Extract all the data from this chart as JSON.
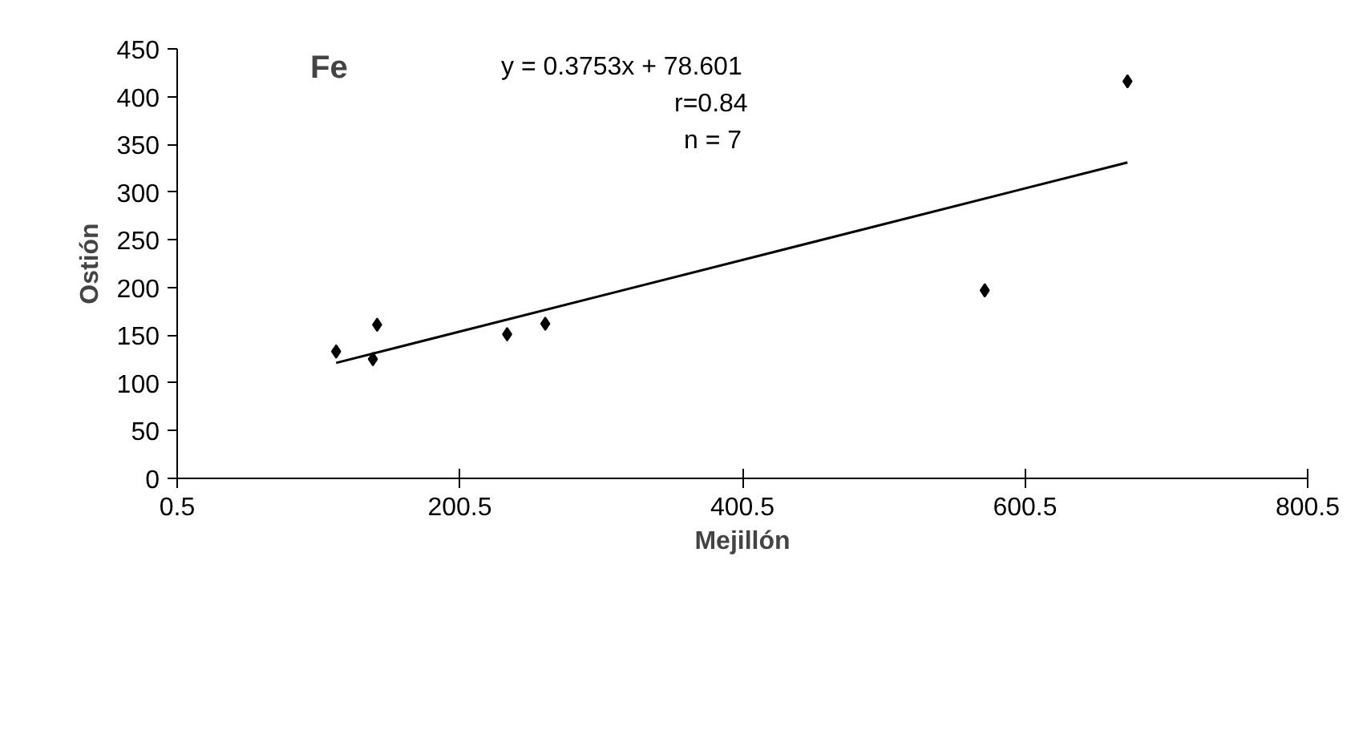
{
  "chart_data": {
    "type": "scatter",
    "title": "Fe",
    "xlabel": "Mejillón",
    "ylabel": "Ostión",
    "annotations": [
      "y = 0.3753x + 78.601",
      "r=0.84",
      "n = 7"
    ],
    "series": [
      {
        "color": "#000000",
        "marker": "diamond",
        "x": [
          113,
          139,
          142,
          234,
          261,
          572,
          673
        ],
        "values": [
          133,
          125,
          161,
          151,
          162,
          197,
          416
        ]
      },
      {
        "type": "line",
        "color": "#000000",
        "x": [
          113,
          673
        ],
        "values": [
          121,
          331
        ]
      }
    ],
    "xlim": [
      0.5,
      800.5
    ],
    "xticks": [
      0.5,
      200.5,
      400.5,
      600.5,
      800.5
    ],
    "ylim": [
      0,
      450
    ],
    "yticks": [
      0,
      50,
      100,
      150,
      200,
      250,
      300,
      350,
      400,
      450
    ],
    "grid": false
  }
}
